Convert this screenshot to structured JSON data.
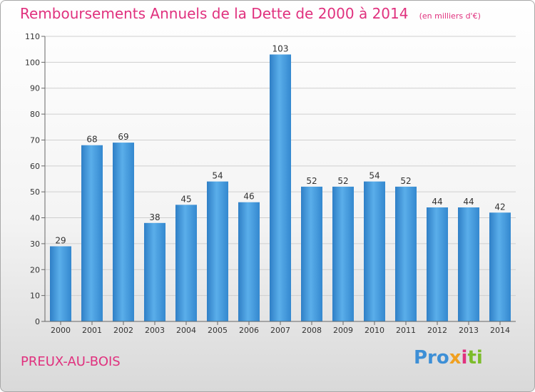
{
  "chart_data": {
    "type": "bar",
    "title": "Remboursements Annuels de la Dette de 2000 à 2014",
    "subtitle": "(en milliers d'€)",
    "categories": [
      "2000",
      "2001",
      "2002",
      "2003",
      "2004",
      "2005",
      "2006",
      "2007",
      "2008",
      "2009",
      "2010",
      "2011",
      "2012",
      "2013",
      "2014"
    ],
    "values": [
      29,
      68,
      69,
      38,
      45,
      54,
      46,
      103,
      52,
      52,
      54,
      52,
      44,
      44,
      42
    ],
    "ylim": [
      0,
      110
    ],
    "yticks": [
      0,
      10,
      20,
      30,
      40,
      50,
      60,
      70,
      80,
      90,
      100,
      110
    ],
    "grid": true,
    "bar_color": "#3a8fd9",
    "xlabel": "",
    "ylabel": ""
  },
  "footer": {
    "place": "PREUX-AU-BOIS",
    "logo": [
      "Pro",
      "x",
      "i",
      "ti"
    ]
  }
}
